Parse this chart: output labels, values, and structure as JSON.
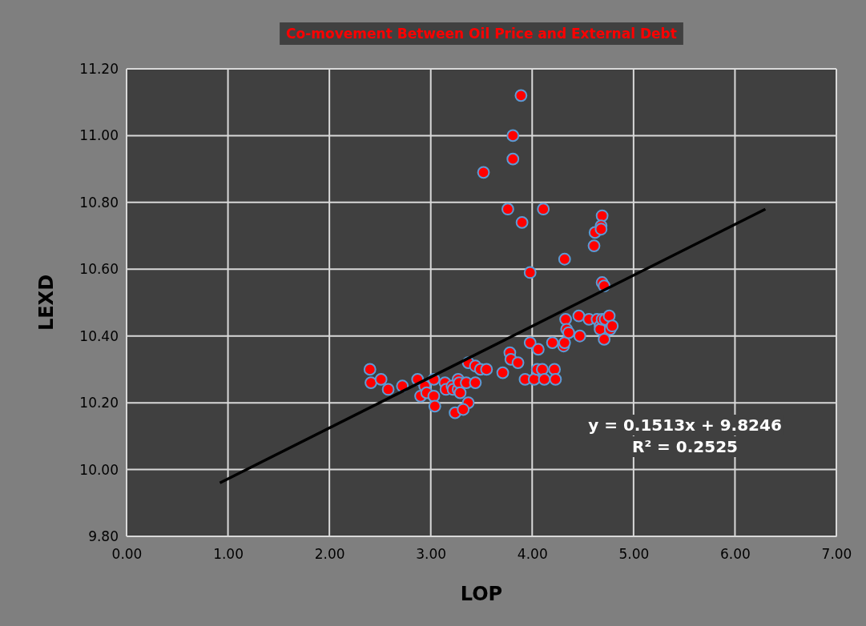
{
  "chart_data": {
    "type": "scatter",
    "title": "Co-movement Between Oil Price and External Debt",
    "xlabel": "LOP",
    "ylabel": "LEXD",
    "xlim": [
      0,
      7
    ],
    "ylim": [
      9.8,
      11.2
    ],
    "xticks": [
      {
        "value": 0,
        "label": "0.00"
      },
      {
        "value": 1,
        "label": "1.00"
      },
      {
        "value": 2,
        "label": "2.00"
      },
      {
        "value": 3,
        "label": "3.00"
      },
      {
        "value": 4,
        "label": "4.00"
      },
      {
        "value": 5,
        "label": "5.00"
      },
      {
        "value": 6,
        "label": "6.00"
      },
      {
        "value": 7,
        "label": "7.00"
      }
    ],
    "yticks": [
      {
        "value": 9.8,
        "label": "9.80"
      },
      {
        "value": 10,
        "label": "10.00"
      },
      {
        "value": 10.2,
        "label": "10.20"
      },
      {
        "value": 10.4,
        "label": "10.40"
      },
      {
        "value": 10.6,
        "label": "10.60"
      },
      {
        "value": 10.8,
        "label": "10.80"
      },
      {
        "value": 11,
        "label": "11.00"
      },
      {
        "value": 11.2,
        "label": "11.20"
      }
    ],
    "grid": true,
    "annotations": [
      "y = 0.1513x + 9.8246",
      "R² = 0.2525"
    ],
    "series": [
      {
        "color": "#ff0000",
        "marker": "circle",
        "x": [
          2.4,
          2.41,
          2.51,
          2.58,
          2.72,
          2.87,
          2.9,
          2.94,
          2.96,
          3.03,
          3.03,
          3.04,
          3.14,
          3.15,
          3.21,
          3.22,
          3.24,
          3.27,
          3.27,
          3.28,
          3.29,
          3.35,
          3.37,
          3.37,
          3.32,
          3.44,
          3.44,
          3.49,
          3.52,
          3.55,
          3.71,
          3.76,
          3.78,
          3.79,
          3.81,
          3.81,
          3.89,
          3.86,
          3.9,
          3.93,
          3.98,
          3.98,
          4.02,
          4.05,
          4.06,
          4.1,
          4.12,
          4.11,
          4.2,
          4.22,
          4.23,
          4.31,
          4.32,
          4.32,
          4.33,
          4.34,
          4.36,
          4.46,
          4.47,
          4.56,
          4.61,
          4.62,
          4.64,
          4.67,
          4.67,
          4.69,
          4.71,
          4.72,
          4.76,
          4.77,
          4.79,
          4.69,
          4.68,
          4.68,
          4.69,
          4.71
        ],
        "values": [
          10.3,
          10.26,
          10.27,
          10.24,
          10.25,
          10.27,
          10.22,
          10.25,
          10.23,
          10.27,
          10.22,
          10.19,
          10.26,
          10.24,
          10.25,
          10.24,
          10.17,
          10.27,
          10.24,
          10.26,
          10.23,
          10.26,
          10.32,
          10.2,
          10.18,
          10.31,
          10.26,
          10.3,
          10.89,
          10.3,
          10.29,
          10.78,
          10.35,
          10.33,
          10.93,
          11.0,
          11.12,
          10.32,
          10.74,
          10.27,
          10.59,
          10.38,
          10.27,
          10.3,
          10.36,
          10.3,
          10.27,
          10.78,
          10.38,
          10.3,
          10.27,
          10.37,
          10.38,
          10.63,
          10.45,
          10.42,
          10.41,
          10.46,
          10.4,
          10.45,
          10.67,
          10.71,
          10.45,
          10.43,
          10.42,
          10.45,
          10.39,
          10.45,
          10.46,
          10.42,
          10.43,
          10.76,
          10.73,
          10.72,
          10.56,
          10.55
        ]
      },
      {
        "type": "line",
        "color": "#000000",
        "x": [
          0.92,
          6.3
        ],
        "values": [
          9.96,
          10.78
        ]
      }
    ]
  }
}
